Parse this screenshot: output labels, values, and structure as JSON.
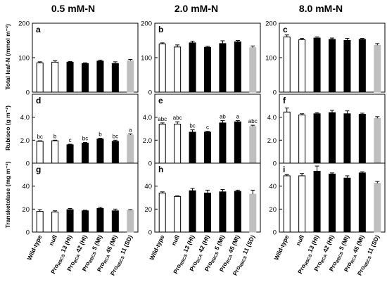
{
  "columns": [
    "0.5 mM-N",
    "2.0 mM-N",
    "8.0 mM-N"
  ],
  "row_labels": [
    "Total leaf-N (mmol m⁻²)",
    "Rubisco (g m⁻²)",
    "Transketolase (mg m⁻²)"
  ],
  "panel_letters": [
    [
      "a",
      "b",
      "c"
    ],
    [
      "d",
      "e",
      "f"
    ],
    [
      "g",
      "h",
      "i"
    ]
  ],
  "xtick_labels": [
    {
      "main": "Wild-type"
    },
    {
      "main": "null"
    },
    {
      "pre": "Pro",
      "sub": "RBCS",
      "post": " 13 (HI)"
    },
    {
      "pre": "Pro",
      "sub": "RCA",
      "post": " 42 (HI)"
    },
    {
      "pre": "Pro",
      "sub": "RBCS",
      "post": " 5 (MI)"
    },
    {
      "pre": "Pro",
      "sub": "RCA",
      "post": " 45 (MI)"
    },
    {
      "pre": "Pro",
      "sub": "RBCS",
      "post": " 11 (SD)"
    }
  ],
  "colors": {
    "wild_type": "#ffffff",
    "transgenic": "#000000",
    "sd": "#bfbfbf",
    "frame": "#000000"
  },
  "chart_data": {
    "type": "bar",
    "rows": [
      {
        "ylim": [
          0,
          200
        ],
        "yticks": [
          "0",
          "100",
          "200"
        ],
        "panels": [
          {
            "values": [
              85,
              87,
              87,
              83,
              90,
              83,
              91
            ],
            "errors": [
              3,
              4,
              2,
              2,
              3,
              5,
              4
            ],
            "letters": []
          },
          {
            "values": [
              140,
              131,
              143,
              130,
              141,
              146,
              129
            ],
            "errors": [
              3,
              6,
              5,
              3,
              8,
              4,
              5
            ],
            "letters": []
          },
          {
            "values": [
              160,
              152,
              157,
              153,
              150,
              153,
              136
            ],
            "errors": [
              6,
              4,
              3,
              4,
              6,
              3,
              5
            ],
            "letters": []
          }
        ]
      },
      {
        "ylim": [
          0,
          6
        ],
        "yticks": [
          "0",
          "2.0",
          "4.0"
        ],
        "panels": [
          {
            "values": [
              1.9,
              1.95,
              1.6,
              1.75,
              2.1,
              1.9,
              2.45
            ],
            "errors": [
              0.05,
              0.05,
              0.05,
              0.05,
              0.07,
              0.1,
              0.1
            ],
            "letters": [
              "bc",
              "b",
              "c",
              "bc",
              "b",
              "bc",
              "a"
            ]
          },
          {
            "values": [
              3.4,
              3.4,
              2.7,
              2.7,
              3.5,
              3.6,
              3.2
            ],
            "errors": [
              0.1,
              0.2,
              0.2,
              0.08,
              0.2,
              0.1,
              0.1
            ],
            "letters": [
              "abc",
              "abc",
              "bc",
              "c",
              "ab",
              "a",
              "abc"
            ]
          },
          {
            "values": [
              4.45,
              4.2,
              4.3,
              4.4,
              4.3,
              4.25,
              3.9
            ],
            "errors": [
              0.35,
              0.1,
              0.1,
              0.2,
              0.25,
              0.1,
              0.15
            ],
            "letters": []
          }
        ]
      },
      {
        "ylim": [
          0,
          60
        ],
        "yticks": [
          "0",
          "20",
          "40"
        ],
        "panels": [
          {
            "values": [
              18,
              17.5,
              19.5,
              18.5,
              20.5,
              18.5,
              19
            ],
            "errors": [
              1.5,
              1,
              1,
              0.5,
              1,
              1.5,
              0.5
            ],
            "letters": []
          },
          {
            "values": [
              34,
              31,
              36,
              34,
              35,
              35.5,
              33
            ],
            "errors": [
              1,
              0.5,
              2,
              2.5,
              2,
              1,
              3.5
            ],
            "letters": []
          },
          {
            "values": [
              49,
              49,
              53,
              50.5,
              47,
              51.5,
              42.5
            ],
            "errors": [
              1,
              2,
              4.5,
              1,
              2,
              1,
              1.5
            ],
            "letters": []
          }
        ]
      }
    ]
  }
}
